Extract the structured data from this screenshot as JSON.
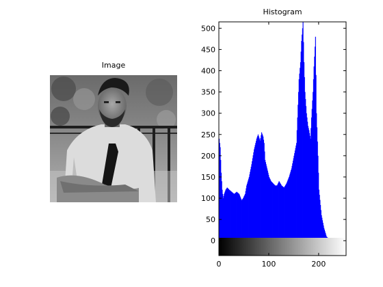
{
  "image_panel": {
    "title": "Image"
  },
  "histogram_panel": {
    "title": "Histogram"
  },
  "chart_data": {
    "type": "bar",
    "title": "Histogram",
    "xlabel": "",
    "ylabel": "",
    "xlim": [
      0,
      255
    ],
    "ylim": [
      -35,
      515
    ],
    "grid": false,
    "bar_color": "#0000ff",
    "colorbar": "grayscale gradient 0 to 255",
    "x_ticks": [
      0,
      100,
      200
    ],
    "y_ticks": [
      0,
      50,
      100,
      150,
      200,
      250,
      300,
      350,
      400,
      450,
      500
    ],
    "profile_bins": [
      0,
      2,
      4,
      6,
      8,
      10,
      13,
      16,
      20,
      25,
      30,
      35,
      40,
      45,
      48,
      52,
      55,
      60,
      65,
      70,
      75,
      78,
      82,
      85,
      88,
      90,
      92,
      95,
      98,
      100,
      104,
      108,
      112,
      116,
      120,
      125,
      130,
      135,
      140,
      145,
      150,
      155,
      158,
      160,
      163,
      165,
      168,
      170,
      172,
      175,
      178,
      180,
      183,
      185,
      188,
      190,
      193,
      195,
      198,
      200,
      205,
      210,
      215,
      220,
      255
    ],
    "profile_counts": [
      240,
      220,
      160,
      120,
      100,
      110,
      120,
      125,
      120,
      115,
      110,
      115,
      110,
      95,
      100,
      110,
      130,
      150,
      180,
      215,
      240,
      250,
      235,
      255,
      245,
      230,
      190,
      175,
      160,
      150,
      140,
      135,
      130,
      130,
      140,
      130,
      125,
      135,
      150,
      170,
      200,
      230,
      320,
      380,
      420,
      470,
      515,
      420,
      350,
      300,
      270,
      260,
      240,
      290,
      350,
      410,
      480,
      300,
      200,
      120,
      60,
      30,
      10,
      4,
      0
    ]
  }
}
